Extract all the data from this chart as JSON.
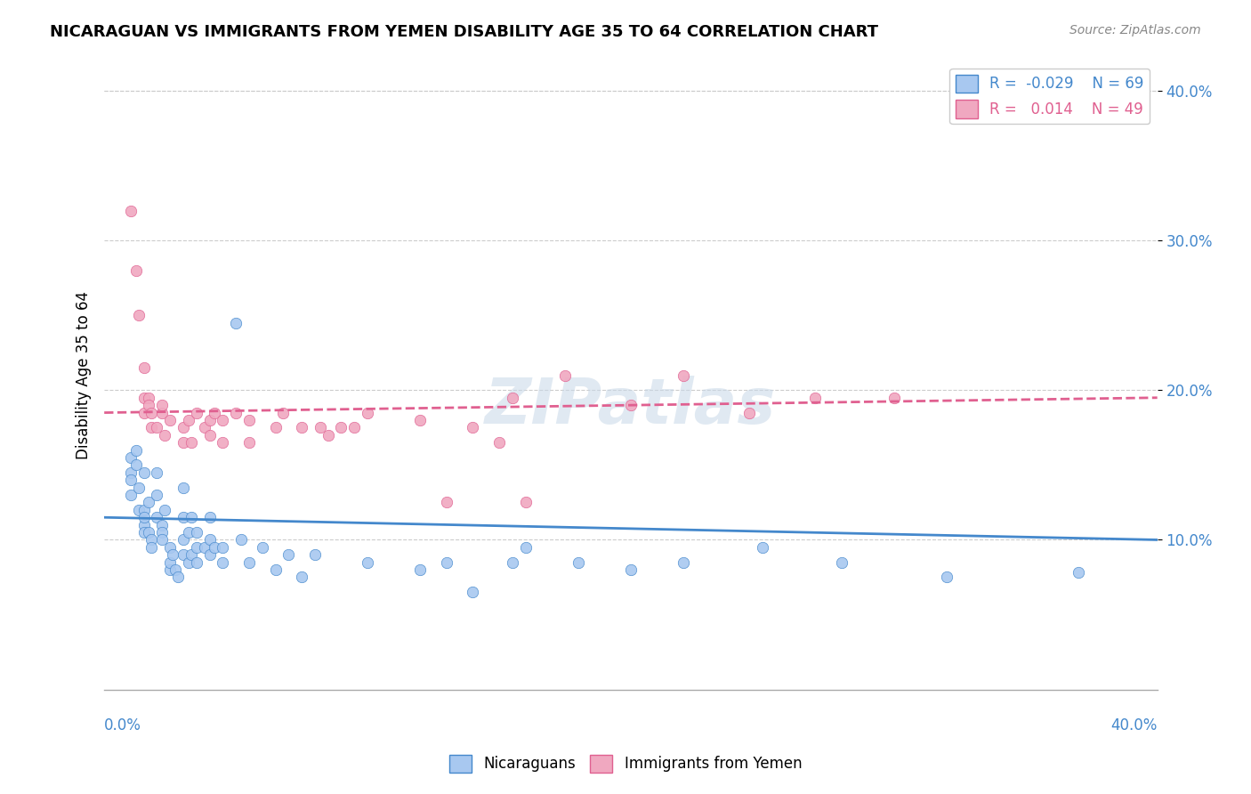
{
  "title": "NICARAGUAN VS IMMIGRANTS FROM YEMEN DISABILITY AGE 35 TO 64 CORRELATION CHART",
  "source": "Source: ZipAtlas.com",
  "ylabel": "Disability Age 35 to 64",
  "xlim": [
    0.0,
    0.4
  ],
  "ylim": [
    0.0,
    0.42
  ],
  "legend_blue_r": "-0.029",
  "legend_blue_n": "69",
  "legend_pink_r": "0.014",
  "legend_pink_n": "49",
  "blue_color": "#a8c8f0",
  "pink_color": "#f0a8c0",
  "blue_line_color": "#4488cc",
  "pink_line_color": "#e06090",
  "blue_trend_start": 0.115,
  "blue_trend_end": 0.1,
  "pink_trend_start": 0.185,
  "pink_trend_end": 0.195,
  "blue_dots": [
    [
      0.01,
      0.155
    ],
    [
      0.01,
      0.145
    ],
    [
      0.01,
      0.14
    ],
    [
      0.01,
      0.13
    ],
    [
      0.012,
      0.16
    ],
    [
      0.012,
      0.15
    ],
    [
      0.013,
      0.12
    ],
    [
      0.013,
      0.135
    ],
    [
      0.015,
      0.145
    ],
    [
      0.015,
      0.12
    ],
    [
      0.015,
      0.11
    ],
    [
      0.015,
      0.105
    ],
    [
      0.015,
      0.115
    ],
    [
      0.017,
      0.125
    ],
    [
      0.017,
      0.105
    ],
    [
      0.018,
      0.1
    ],
    [
      0.018,
      0.095
    ],
    [
      0.02,
      0.145
    ],
    [
      0.02,
      0.13
    ],
    [
      0.02,
      0.115
    ],
    [
      0.022,
      0.11
    ],
    [
      0.022,
      0.105
    ],
    [
      0.022,
      0.1
    ],
    [
      0.023,
      0.12
    ],
    [
      0.025,
      0.08
    ],
    [
      0.025,
      0.085
    ],
    [
      0.025,
      0.095
    ],
    [
      0.026,
      0.09
    ],
    [
      0.027,
      0.08
    ],
    [
      0.028,
      0.075
    ],
    [
      0.03,
      0.135
    ],
    [
      0.03,
      0.115
    ],
    [
      0.03,
      0.1
    ],
    [
      0.03,
      0.09
    ],
    [
      0.032,
      0.085
    ],
    [
      0.032,
      0.105
    ],
    [
      0.033,
      0.115
    ],
    [
      0.033,
      0.09
    ],
    [
      0.035,
      0.095
    ],
    [
      0.035,
      0.085
    ],
    [
      0.035,
      0.105
    ],
    [
      0.038,
      0.095
    ],
    [
      0.04,
      0.115
    ],
    [
      0.04,
      0.1
    ],
    [
      0.04,
      0.09
    ],
    [
      0.042,
      0.095
    ],
    [
      0.045,
      0.085
    ],
    [
      0.045,
      0.095
    ],
    [
      0.05,
      0.245
    ],
    [
      0.052,
      0.1
    ],
    [
      0.055,
      0.085
    ],
    [
      0.06,
      0.095
    ],
    [
      0.065,
      0.08
    ],
    [
      0.07,
      0.09
    ],
    [
      0.075,
      0.075
    ],
    [
      0.08,
      0.09
    ],
    [
      0.1,
      0.085
    ],
    [
      0.12,
      0.08
    ],
    [
      0.13,
      0.085
    ],
    [
      0.14,
      0.065
    ],
    [
      0.155,
      0.085
    ],
    [
      0.16,
      0.095
    ],
    [
      0.18,
      0.085
    ],
    [
      0.2,
      0.08
    ],
    [
      0.22,
      0.085
    ],
    [
      0.25,
      0.095
    ],
    [
      0.28,
      0.085
    ],
    [
      0.32,
      0.075
    ],
    [
      0.37,
      0.078
    ]
  ],
  "pink_dots": [
    [
      0.01,
      0.32
    ],
    [
      0.012,
      0.28
    ],
    [
      0.013,
      0.25
    ],
    [
      0.015,
      0.215
    ],
    [
      0.015,
      0.195
    ],
    [
      0.015,
      0.185
    ],
    [
      0.017,
      0.195
    ],
    [
      0.017,
      0.19
    ],
    [
      0.018,
      0.175
    ],
    [
      0.018,
      0.185
    ],
    [
      0.02,
      0.175
    ],
    [
      0.022,
      0.185
    ],
    [
      0.022,
      0.19
    ],
    [
      0.023,
      0.17
    ],
    [
      0.025,
      0.18
    ],
    [
      0.03,
      0.175
    ],
    [
      0.03,
      0.165
    ],
    [
      0.032,
      0.18
    ],
    [
      0.033,
      0.165
    ],
    [
      0.035,
      0.185
    ],
    [
      0.038,
      0.175
    ],
    [
      0.04,
      0.18
    ],
    [
      0.04,
      0.17
    ],
    [
      0.042,
      0.185
    ],
    [
      0.045,
      0.165
    ],
    [
      0.045,
      0.18
    ],
    [
      0.05,
      0.185
    ],
    [
      0.055,
      0.18
    ],
    [
      0.055,
      0.165
    ],
    [
      0.065,
      0.175
    ],
    [
      0.068,
      0.185
    ],
    [
      0.075,
      0.175
    ],
    [
      0.082,
      0.175
    ],
    [
      0.085,
      0.17
    ],
    [
      0.09,
      0.175
    ],
    [
      0.095,
      0.175
    ],
    [
      0.1,
      0.185
    ],
    [
      0.12,
      0.18
    ],
    [
      0.13,
      0.125
    ],
    [
      0.14,
      0.175
    ],
    [
      0.15,
      0.165
    ],
    [
      0.155,
      0.195
    ],
    [
      0.16,
      0.125
    ],
    [
      0.175,
      0.21
    ],
    [
      0.2,
      0.19
    ],
    [
      0.22,
      0.21
    ],
    [
      0.245,
      0.185
    ],
    [
      0.27,
      0.195
    ],
    [
      0.3,
      0.195
    ]
  ]
}
